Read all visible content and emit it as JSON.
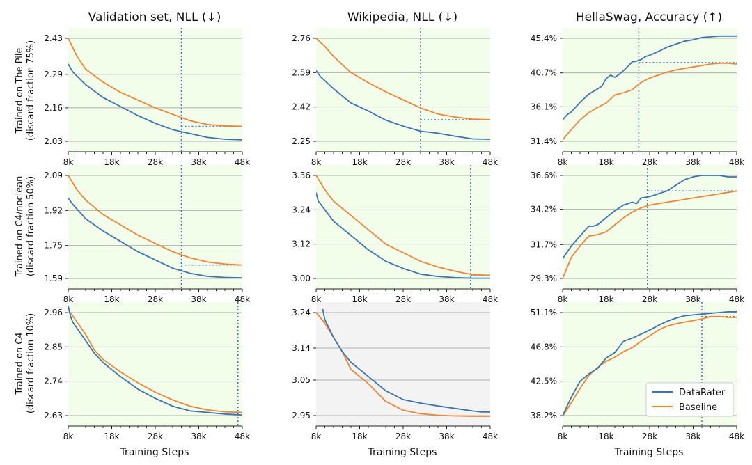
{
  "colors": {
    "datarater": "#3b75af",
    "baseline": "#ef8636",
    "plot_bg": "#f2fdea",
    "plot_bg_gray": "#f3f3f3",
    "grid": "#b0b0b0"
  },
  "column_titles": [
    "Validation set, NLL (↓)",
    "Wikipedia, NLL (↓)",
    "HellaSwag, Accuracy (↑)"
  ],
  "row_labels": [
    [
      "Trained on The Pile",
      "(discard fraction 75%)"
    ],
    [
      "Trained on C4/noclean",
      "(discard fraction 50%)"
    ],
    [
      "Trained on C4",
      "(discard fraction 10%)"
    ]
  ],
  "xlabel": "Training Steps",
  "legend": {
    "datarater": "DataRater",
    "baseline": "Baseline",
    "placement": "lower-right of bottom-right panel"
  },
  "chart_data": [
    {
      "id": "pile-validation",
      "type": "line",
      "xlim": [
        8,
        48
      ],
      "xticks": [
        8,
        18,
        28,
        38,
        48
      ],
      "xtick_labels": [
        "8k",
        "18k",
        "28k",
        "38k",
        "48k"
      ],
      "ylim": [
        2.03,
        2.43
      ],
      "yticks": [
        2.03,
        2.16,
        2.29,
        2.43
      ],
      "ytick_labels": [
        "2.03",
        "2.16",
        "2.29",
        "2.43"
      ],
      "background": "green",
      "grid": true,
      "series": [
        {
          "name": "DataRater",
          "x": [
            8,
            9,
            12,
            16,
            20,
            24,
            28,
            32,
            36,
            40,
            44,
            48
          ],
          "y": [
            2.33,
            2.3,
            2.25,
            2.2,
            2.165,
            2.13,
            2.1,
            2.075,
            2.06,
            2.045,
            2.038,
            2.036
          ]
        },
        {
          "name": "Baseline",
          "x": [
            8,
            10,
            12,
            16,
            20,
            24,
            28,
            32,
            36,
            40,
            44,
            48
          ],
          "y": [
            2.43,
            2.36,
            2.31,
            2.26,
            2.22,
            2.19,
            2.16,
            2.135,
            2.11,
            2.095,
            2.09,
            2.088
          ]
        }
      ],
      "vline_x": 34,
      "hline_y": 2.088,
      "hline_from_x": 34
    },
    {
      "id": "pile-wikipedia",
      "type": "line",
      "xlim": [
        8,
        48
      ],
      "xticks": [
        8,
        18,
        28,
        38,
        48
      ],
      "xtick_labels": [
        "8k",
        "18k",
        "28k",
        "38k",
        "48k"
      ],
      "ylim": [
        2.25,
        2.76
      ],
      "yticks": [
        2.25,
        2.42,
        2.59,
        2.76
      ],
      "ytick_labels": [
        "2.25",
        "2.42",
        "2.59",
        "2.76"
      ],
      "background": "green",
      "grid": true,
      "series": [
        {
          "name": "DataRater",
          "x": [
            8,
            9,
            12,
            16,
            20,
            24,
            28,
            32,
            36,
            40,
            44,
            48
          ],
          "y": [
            2.6,
            2.57,
            2.51,
            2.44,
            2.4,
            2.355,
            2.325,
            2.3,
            2.29,
            2.275,
            2.262,
            2.26
          ]
        },
        {
          "name": "Baseline",
          "x": [
            8,
            10,
            12,
            16,
            20,
            24,
            28,
            32,
            36,
            40,
            44,
            48
          ],
          "y": [
            2.76,
            2.72,
            2.67,
            2.59,
            2.54,
            2.495,
            2.455,
            2.415,
            2.385,
            2.37,
            2.36,
            2.357
          ]
        }
      ],
      "vline_x": 32,
      "hline_y": 2.357,
      "hline_from_x": 32
    },
    {
      "id": "pile-hellaswag",
      "type": "line",
      "xlim": [
        8,
        48
      ],
      "xticks": [
        8,
        18,
        28,
        38,
        48
      ],
      "xtick_labels": [
        "8k",
        "18k",
        "28k",
        "38k",
        "48k"
      ],
      "ylim": [
        31.4,
        45.4
      ],
      "yticks": [
        31.4,
        36.1,
        40.7,
        45.4
      ],
      "ytick_labels": [
        "31.4%",
        "36.1%",
        "40.7%",
        "45.4%"
      ],
      "background": "green",
      "grid": true,
      "series": [
        {
          "name": "DataRater",
          "x": [
            8,
            9,
            10,
            12,
            14,
            16,
            17,
            18,
            19,
            20,
            21,
            22,
            23,
            24,
            25,
            26,
            27,
            28,
            30,
            32,
            34,
            36,
            38,
            40,
            42,
            44,
            46,
            48
          ],
          "y": [
            34.3,
            35.0,
            35.4,
            36.7,
            37.8,
            38.5,
            38.9,
            39.9,
            40.4,
            40.1,
            40.5,
            41.0,
            41.6,
            42.2,
            42.3,
            42.5,
            42.9,
            43.1,
            43.6,
            44.2,
            44.6,
            45.0,
            45.2,
            45.5,
            45.6,
            45.7,
            45.7,
            45.7
          ]
        },
        {
          "name": "Baseline",
          "x": [
            8,
            10,
            12,
            14,
            16,
            18,
            20,
            22,
            24,
            26,
            28,
            30,
            32,
            34,
            36,
            38,
            40,
            42,
            44,
            46,
            48
          ],
          "y": [
            31.6,
            33.0,
            34.3,
            35.3,
            36.0,
            36.6,
            37.7,
            38.0,
            38.4,
            39.4,
            40.0,
            40.4,
            40.8,
            41.1,
            41.3,
            41.5,
            41.7,
            41.9,
            42.0,
            42.0,
            41.9
          ]
        }
      ],
      "vline_x": 25.5,
      "hline_y": 42.1,
      "hline_from_x": 25.5
    },
    {
      "id": "c4noclean-validation",
      "type": "line",
      "xlim": [
        8,
        48
      ],
      "xticks": [
        8,
        18,
        28,
        38,
        48
      ],
      "xtick_labels": [
        "8k",
        "18k",
        "28k",
        "38k",
        "48k"
      ],
      "ylim": [
        1.59,
        2.09
      ],
      "yticks": [
        1.59,
        1.75,
        1.92,
        2.09
      ],
      "ytick_labels": [
        "1.59",
        "1.75",
        "1.92",
        "2.09"
      ],
      "background": "green",
      "grid": true,
      "series": [
        {
          "name": "DataRater",
          "x": [
            8,
            9,
            12,
            16,
            20,
            24,
            28,
            32,
            36,
            40,
            44,
            48
          ],
          "y": [
            1.98,
            1.95,
            1.88,
            1.82,
            1.77,
            1.72,
            1.68,
            1.64,
            1.615,
            1.6,
            1.595,
            1.593
          ]
        },
        {
          "name": "Baseline",
          "x": [
            8,
            10,
            12,
            16,
            20,
            24,
            28,
            32,
            36,
            40,
            44,
            48
          ],
          "y": [
            2.09,
            2.02,
            1.97,
            1.9,
            1.85,
            1.8,
            1.76,
            1.72,
            1.69,
            1.67,
            1.66,
            1.655
          ]
        }
      ],
      "vline_x": 34,
      "hline_y": 1.655,
      "hline_from_x": 34
    },
    {
      "id": "c4noclean-wikipedia",
      "type": "line",
      "xlim": [
        8,
        48
      ],
      "xticks": [
        8,
        18,
        28,
        38,
        48
      ],
      "xtick_labels": [
        "8k",
        "18k",
        "28k",
        "38k",
        "48k"
      ],
      "ylim": [
        3.0,
        3.36
      ],
      "yticks": [
        3.0,
        3.12,
        3.24,
        3.36
      ],
      "ytick_labels": [
        "3.00",
        "3.12",
        "3.24",
        "3.36"
      ],
      "background": "green",
      "grid": true,
      "series": [
        {
          "name": "DataRater",
          "x": [
            8,
            8.5,
            9,
            12,
            16,
            20,
            24,
            28,
            32,
            36,
            40,
            44,
            48
          ],
          "y": [
            3.3,
            3.27,
            3.26,
            3.2,
            3.15,
            3.1,
            3.06,
            3.035,
            3.015,
            3.007,
            3.003,
            3.001,
            3.001
          ]
        },
        {
          "name": "Baseline",
          "x": [
            8,
            10,
            12,
            16,
            20,
            24,
            28,
            32,
            36,
            40,
            44,
            48
          ],
          "y": [
            3.36,
            3.31,
            3.27,
            3.22,
            3.17,
            3.12,
            3.09,
            3.06,
            3.04,
            3.025,
            3.013,
            3.011
          ]
        }
      ],
      "vline_x": 43.5,
      "hline_y": 3.011,
      "hline_from_x": 43.5
    },
    {
      "id": "c4noclean-hellaswag",
      "type": "line",
      "xlim": [
        8,
        48
      ],
      "xticks": [
        8,
        18,
        28,
        38,
        48
      ],
      "xtick_labels": [
        "8k",
        "18k",
        "28k",
        "38k",
        "48k"
      ],
      "ylim": [
        29.3,
        36.6
      ],
      "yticks": [
        29.3,
        31.7,
        34.2,
        36.6
      ],
      "ytick_labels": [
        "29.3%",
        "31.7%",
        "34.2%",
        "36.6%"
      ],
      "background": "green",
      "grid": true,
      "series": [
        {
          "name": "DataRater",
          "x": [
            8,
            10,
            12,
            14,
            15,
            16,
            18,
            20,
            22,
            24,
            25,
            26,
            28,
            30,
            32,
            34,
            36,
            38,
            40,
            42,
            44,
            46,
            48
          ],
          "y": [
            30.7,
            31.6,
            32.3,
            33.0,
            33.0,
            33.1,
            33.6,
            34.1,
            34.5,
            34.7,
            34.6,
            35.0,
            35.1,
            35.3,
            35.5,
            35.9,
            36.3,
            36.5,
            36.6,
            36.6,
            36.6,
            36.5,
            36.5
          ]
        },
        {
          "name": "Baseline",
          "x": [
            8,
            10,
            12,
            14,
            16,
            18,
            20,
            22,
            24,
            26,
            28,
            30,
            32,
            34,
            36,
            38,
            40,
            42,
            44,
            46,
            48
          ],
          "y": [
            29.3,
            30.8,
            31.6,
            32.3,
            32.4,
            32.6,
            33.1,
            33.6,
            34.0,
            34.3,
            34.5,
            34.6,
            34.7,
            34.8,
            34.9,
            35.0,
            35.1,
            35.2,
            35.3,
            35.4,
            35.5
          ]
        }
      ],
      "vline_x": 27.5,
      "hline_y": 35.5,
      "hline_from_x": 27.5
    },
    {
      "id": "c4-validation",
      "type": "line",
      "xlim": [
        8,
        48
      ],
      "xticks": [
        8,
        18,
        28,
        38,
        48
      ],
      "xtick_labels": [
        "8k",
        "18k",
        "28k",
        "38k",
        "48k"
      ],
      "ylim": [
        2.63,
        2.96
      ],
      "yticks": [
        2.63,
        2.74,
        2.85,
        2.96
      ],
      "ytick_labels": [
        "2.63",
        "2.74",
        "2.85",
        "2.96"
      ],
      "background": "green",
      "grid": true,
      "series": [
        {
          "name": "DataRater",
          "x": [
            8,
            8.5,
            9,
            10,
            12,
            14,
            16,
            20,
            24,
            28,
            32,
            36,
            40,
            44,
            48
          ],
          "y": [
            2.98,
            2.95,
            2.93,
            2.91,
            2.87,
            2.83,
            2.8,
            2.755,
            2.715,
            2.685,
            2.66,
            2.645,
            2.64,
            2.635,
            2.632
          ]
        },
        {
          "name": "Baseline",
          "x": [
            8,
            9,
            10,
            12,
            14,
            16,
            20,
            24,
            28,
            32,
            36,
            40,
            44,
            48
          ],
          "y": [
            2.97,
            2.95,
            2.93,
            2.89,
            2.84,
            2.81,
            2.77,
            2.735,
            2.705,
            2.68,
            2.66,
            2.648,
            2.642,
            2.64
          ]
        }
      ],
      "vline_x": 47,
      "hline_y": null,
      "hline_from_x": null
    },
    {
      "id": "c4-wikipedia",
      "type": "line",
      "xlim": [
        8,
        48
      ],
      "xticks": [
        8,
        18,
        28,
        38,
        48
      ],
      "xtick_labels": [
        "8k",
        "18k",
        "28k",
        "38k",
        "48k"
      ],
      "ylim": [
        2.95,
        3.24
      ],
      "yticks": [
        2.95,
        3.05,
        3.14,
        3.24
      ],
      "ytick_labels": [
        "2.95",
        "3.05",
        "3.14",
        "3.24"
      ],
      "background": "gray",
      "grid": true,
      "series": [
        {
          "name": "DataRater",
          "x": [
            9.5,
            10,
            12,
            14,
            16,
            20,
            24,
            28,
            32,
            36,
            40,
            44,
            46,
            48
          ],
          "y": [
            3.25,
            3.22,
            3.17,
            3.13,
            3.1,
            3.06,
            3.02,
            2.995,
            2.985,
            2.977,
            2.97,
            2.963,
            2.96,
            2.96
          ]
        },
        {
          "name": "Baseline",
          "x": [
            8,
            10,
            12,
            14,
            16,
            20,
            24,
            28,
            32,
            36,
            40,
            44,
            48
          ],
          "y": [
            3.24,
            3.21,
            3.17,
            3.13,
            3.08,
            3.04,
            2.99,
            2.965,
            2.955,
            2.951,
            2.949,
            2.948,
            2.948
          ]
        }
      ],
      "vline_x": null,
      "hline_y": null,
      "hline_from_x": null
    },
    {
      "id": "c4-hellaswag",
      "type": "line",
      "xlim": [
        8,
        48
      ],
      "xticks": [
        8,
        18,
        28,
        38,
        48
      ],
      "xtick_labels": [
        "8k",
        "18k",
        "28k",
        "38k",
        "48k"
      ],
      "ylim": [
        38.2,
        51.1
      ],
      "yticks": [
        38.2,
        42.5,
        46.8,
        51.1
      ],
      "ytick_labels": [
        "38.2%",
        "42.5%",
        "46.8%",
        "51.1%"
      ],
      "background": "green",
      "grid": true,
      "series": [
        {
          "name": "DataRater",
          "x": [
            8,
            10,
            12,
            14,
            16,
            18,
            20,
            22,
            24,
            26,
            28,
            30,
            32,
            34,
            36,
            38,
            40,
            42,
            44,
            46,
            48
          ],
          "y": [
            38.2,
            40.5,
            42.5,
            43.4,
            44.1,
            45.4,
            46.1,
            47.5,
            47.9,
            48.4,
            48.9,
            49.5,
            50.0,
            50.4,
            50.7,
            50.8,
            50.9,
            51.0,
            51.1,
            51.2,
            51.2
          ]
        },
        {
          "name": "Baseline",
          "x": [
            8,
            10,
            12,
            14,
            16,
            18,
            20,
            22,
            24,
            26,
            28,
            30,
            32,
            34,
            36,
            38,
            40,
            42,
            44,
            46,
            48
          ],
          "y": [
            38.1,
            39.8,
            41.6,
            43.2,
            44.2,
            45.0,
            45.5,
            46.2,
            46.7,
            47.5,
            48.2,
            48.9,
            49.4,
            49.7,
            49.9,
            50.1,
            50.3,
            50.6,
            50.6,
            50.5,
            50.5
          ]
        }
      ],
      "vline_x": 40,
      "hline_y": 50.6,
      "hline_from_x": 40
    }
  ]
}
